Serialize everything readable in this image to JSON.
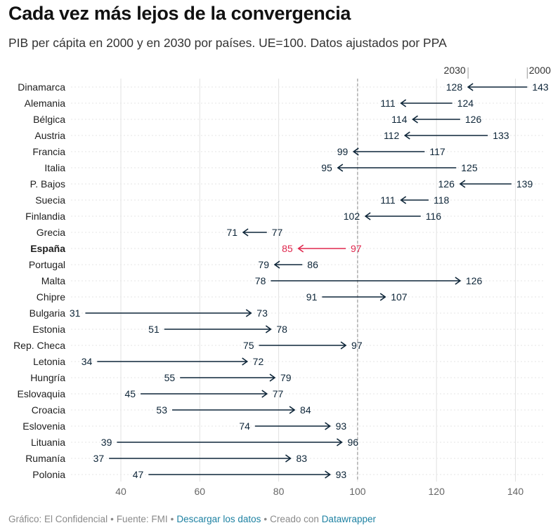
{
  "title": "Cada vez más lejos de la convergencia",
  "subtitle": "PIB per cápita en 2000 y en 2030 por países. UE=100. Datos ajustados por PPA",
  "footer": {
    "credit": "Gráfico: El Confidencial",
    "source": "Fuente: FMI",
    "download_link": "Descargar los datos",
    "created_with": "Creado con",
    "tool_link": "Datawrapper"
  },
  "colors": {
    "series": "#0d2538",
    "highlight": "#e0284e",
    "grid": "#e2e2e2",
    "reference_line": "#8a8a8a"
  },
  "chart_data": {
    "type": "arrow",
    "title": "Cada vez más lejos de la convergencia",
    "subtitle": "PIB per cápita en 2000 y en 2030 por países. UE=100. Datos ajustados por PPA",
    "xlim": [
      28,
      148
    ],
    "x_ticks": [
      40,
      60,
      80,
      100,
      120,
      140
    ],
    "reference_line": 100,
    "grid": true,
    "legend_labels": {
      "start": "2000",
      "end": "2030"
    },
    "highlight": "España",
    "rows": [
      {
        "country": "Dinamarca",
        "y2000": 143,
        "y2030": 128
      },
      {
        "country": "Alemania",
        "y2000": 124,
        "y2030": 111
      },
      {
        "country": "Bélgica",
        "y2000": 126,
        "y2030": 114
      },
      {
        "country": "Austria",
        "y2000": 133,
        "y2030": 112
      },
      {
        "country": "Francia",
        "y2000": 117,
        "y2030": 99
      },
      {
        "country": "Italia",
        "y2000": 125,
        "y2030": 95
      },
      {
        "country": "P. Bajos",
        "y2000": 139,
        "y2030": 126
      },
      {
        "country": "Suecia",
        "y2000": 118,
        "y2030": 111
      },
      {
        "country": "Finlandia",
        "y2000": 116,
        "y2030": 102
      },
      {
        "country": "Grecia",
        "y2000": 77,
        "y2030": 71
      },
      {
        "country": "España",
        "y2000": 97,
        "y2030": 85
      },
      {
        "country": "Portugal",
        "y2000": 86,
        "y2030": 79
      },
      {
        "country": "Malta",
        "y2000": 78,
        "y2030": 126
      },
      {
        "country": "Chipre",
        "y2000": 91,
        "y2030": 107
      },
      {
        "country": "Bulgaria",
        "y2000": 31,
        "y2030": 73
      },
      {
        "country": "Estonia",
        "y2000": 51,
        "y2030": 78
      },
      {
        "country": "Rep. Checa",
        "y2000": 75,
        "y2030": 97
      },
      {
        "country": "Letonia",
        "y2000": 34,
        "y2030": 72
      },
      {
        "country": "Hungría",
        "y2000": 55,
        "y2030": 79
      },
      {
        "country": "Eslovaquia",
        "y2000": 45,
        "y2030": 77
      },
      {
        "country": "Croacia",
        "y2000": 53,
        "y2030": 84
      },
      {
        "country": "Eslovenia",
        "y2000": 74,
        "y2030": 93
      },
      {
        "country": "Lituania",
        "y2000": 39,
        "y2030": 96
      },
      {
        "country": "Rumanía",
        "y2000": 37,
        "y2030": 83
      },
      {
        "country": "Polonia",
        "y2000": 47,
        "y2030": 93
      }
    ]
  }
}
